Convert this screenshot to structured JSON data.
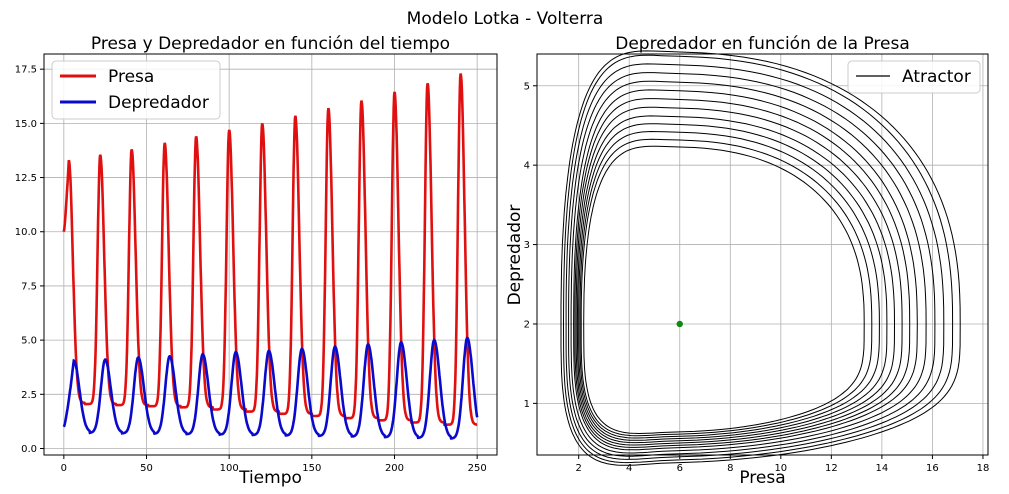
{
  "figure": {
    "suptitle": "Modelo Lotka - Volterra"
  },
  "colors": {
    "prey": "#e01010",
    "predator": "#0a0acc",
    "attractor": "#000000",
    "equilibrium": "#118811",
    "grid": "#b0b0b0"
  },
  "chart_data": [
    {
      "type": "line",
      "title": "Presa y Depredador en función del tiempo",
      "xlabel": "Tiempo",
      "ylabel": "",
      "xlim": [
        -12,
        262
      ],
      "ylim": [
        -0.3,
        18.2
      ],
      "xticks": [
        0,
        50,
        100,
        150,
        200,
        250
      ],
      "yticks": [
        0.0,
        2.5,
        5.0,
        7.5,
        10.0,
        12.5,
        15.0,
        17.5
      ],
      "ytick_labels": [
        "0.0",
        "2.5",
        "5.0",
        "7.5",
        "10.0",
        "12.5",
        "15.0",
        "17.5"
      ],
      "grid": true,
      "legend_position": "upper-left",
      "series": [
        {
          "name": "Presa",
          "x_range": [
            0,
            250
          ],
          "initial": 10.0,
          "peak_times": [
            3,
            22,
            41,
            61,
            80,
            100,
            120,
            140,
            160,
            180,
            200,
            220,
            240
          ],
          "peak_values": [
            13.3,
            13.55,
            13.8,
            14.1,
            14.4,
            14.7,
            15.0,
            15.35,
            15.7,
            16.05,
            16.45,
            16.85,
            17.3
          ],
          "trough_values": [
            2.1,
            2.05,
            2.0,
            1.95,
            1.9,
            1.8,
            1.7,
            1.6,
            1.5,
            1.4,
            1.3,
            1.2,
            1.1
          ]
        },
        {
          "name": "Depredador",
          "x_range": [
            0,
            250
          ],
          "initial": 1.0,
          "peak_times": [
            6,
            25,
            45,
            64,
            84,
            104,
            124,
            144,
            164,
            184,
            204,
            224,
            244
          ],
          "peak_values": [
            4.05,
            4.1,
            4.2,
            4.25,
            4.35,
            4.45,
            4.5,
            4.6,
            4.7,
            4.8,
            4.9,
            5.0,
            5.1
          ],
          "trough_values": [
            0.75,
            0.72,
            0.7,
            0.68,
            0.66,
            0.64,
            0.62,
            0.6,
            0.58,
            0.55,
            0.52,
            0.49,
            0.46
          ]
        }
      ]
    },
    {
      "type": "line",
      "title": "Depredador en función de la Presa",
      "xlabel": "Presa",
      "ylabel": "Depredador",
      "xlim": [
        0.35,
        18.2
      ],
      "ylim": [
        0.35,
        5.4
      ],
      "xticks": [
        2,
        4,
        6,
        8,
        10,
        12,
        14,
        16,
        18
      ],
      "yticks": [
        1,
        2,
        3,
        4,
        5
      ],
      "grid": true,
      "legend_position": "upper-right",
      "series": [
        {
          "name": "Atractor",
          "curve": "closed-orbits",
          "orbits": [
            {
              "x_min": 2.2,
              "x_max": 13.3,
              "y_min": 0.82,
              "y_max": 4.05
            },
            {
              "x_min": 2.1,
              "x_max": 13.6,
              "y_min": 0.8,
              "y_max": 4.13
            },
            {
              "x_min": 2.05,
              "x_max": 13.9,
              "y_min": 0.78,
              "y_max": 4.22
            },
            {
              "x_min": 2.0,
              "x_max": 14.2,
              "y_min": 0.76,
              "y_max": 4.31
            },
            {
              "x_min": 1.95,
              "x_max": 14.5,
              "y_min": 0.74,
              "y_max": 4.4
            },
            {
              "x_min": 1.9,
              "x_max": 14.8,
              "y_min": 0.72,
              "y_max": 4.5
            },
            {
              "x_min": 1.85,
              "x_max": 15.1,
              "y_min": 0.7,
              "y_max": 4.6
            },
            {
              "x_min": 1.8,
              "x_max": 15.4,
              "y_min": 0.68,
              "y_max": 4.7
            },
            {
              "x_min": 1.7,
              "x_max": 15.75,
              "y_min": 0.65,
              "y_max": 4.8
            },
            {
              "x_min": 1.6,
              "x_max": 16.1,
              "y_min": 0.62,
              "y_max": 4.9
            },
            {
              "x_min": 1.5,
              "x_max": 16.45,
              "y_min": 0.59,
              "y_max": 5.0
            },
            {
              "x_min": 1.4,
              "x_max": 16.8,
              "y_min": 0.56,
              "y_max": 5.1
            },
            {
              "x_min": 1.3,
              "x_max": 17.1,
              "y_min": 0.53,
              "y_max": 5.15
            }
          ]
        }
      ],
      "equilibrium_point": {
        "x": 6.0,
        "y": 2.0
      }
    }
  ]
}
